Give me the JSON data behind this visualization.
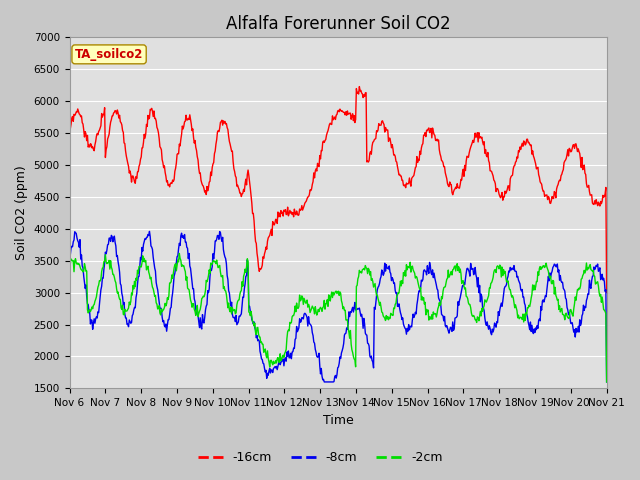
{
  "title": "Alfalfa Forerunner Soil CO2",
  "xlabel": "Time",
  "ylabel": "Soil CO2 (ppm)",
  "ylim": [
    1500,
    7000
  ],
  "yticks": [
    1500,
    2000,
    2500,
    3000,
    3500,
    4000,
    4500,
    5000,
    5500,
    6000,
    6500,
    7000
  ],
  "xtick_labels": [
    "Nov 6",
    "Nov 7",
    "Nov 8",
    "Nov 9",
    "Nov 10",
    "Nov 11",
    "Nov 12",
    "Nov 13",
    "Nov 14",
    "Nov 15",
    "Nov 16",
    "Nov 17",
    "Nov 18",
    "Nov 19",
    "Nov 20",
    "Nov 21"
  ],
  "annotation_box": "TA_soilco2",
  "fig_bg_color": "#c8c8c8",
  "plot_bg_color": "#e0e0e0",
  "line_colors": [
    "#ff0000",
    "#0000ee",
    "#00dd00"
  ],
  "line_labels": [
    "-16cm",
    "-8cm",
    "-2cm"
  ],
  "line_width": 1.0,
  "title_fontsize": 12,
  "axis_label_fontsize": 9,
  "tick_fontsize": 7.5
}
